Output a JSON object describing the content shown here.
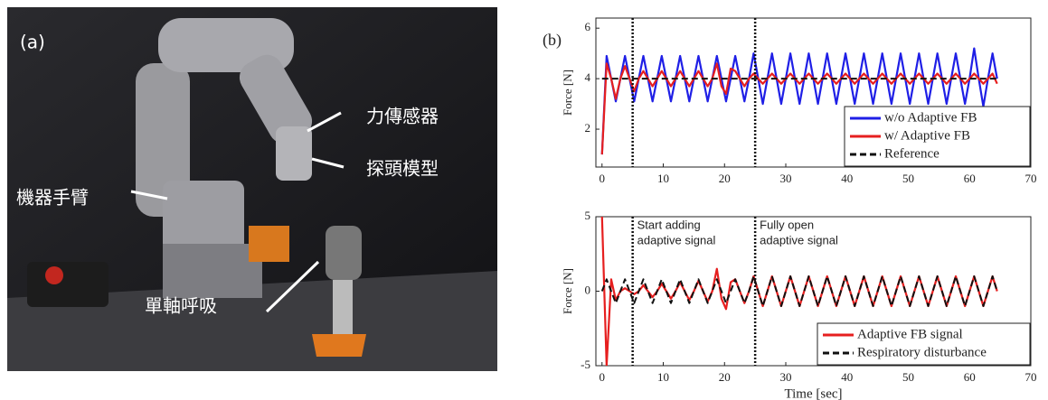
{
  "photo": {
    "label": "(a)",
    "annotations": [
      "力傳感器",
      "探頭模型",
      "機器手臂",
      "單軸呼吸"
    ]
  },
  "panel_label": "(b)",
  "chart_data": [
    {
      "type": "line",
      "ylabel": "Force [N]",
      "x": [
        0,
        0.75,
        1.5,
        2.25,
        3,
        3.75,
        4.5,
        5.25,
        6,
        6.75,
        7.5,
        8.25,
        9,
        9.75,
        10.5,
        11.25,
        12,
        12.75,
        13.5,
        14.25,
        15,
        15.75,
        16.5,
        17.25,
        18,
        18.75,
        19.5,
        20.25,
        21,
        21.75,
        22.5,
        23.25,
        24,
        24.75,
        25.5,
        26.25,
        27,
        27.75,
        28.5,
        29.25,
        30,
        30.75,
        31.5,
        32.25,
        33,
        33.75,
        34.5,
        35.25,
        36,
        36.75,
        37.5,
        38.25,
        39,
        39.75,
        40.5,
        41.25,
        42,
        42.75,
        43.5,
        44.25,
        45,
        45.75,
        46.5,
        47.25,
        48,
        48.75,
        49.5,
        50.25,
        51,
        51.75,
        52.5,
        53.25,
        54,
        54.75,
        55.5,
        56.25,
        57,
        57.75,
        58.5,
        59.25,
        60,
        60.75,
        61.5,
        62.25,
        63,
        63.75,
        64.5
      ],
      "series": [
        {
          "name": "w/o Adaptive FB",
          "color": "#1f1fe6",
          "linestyle": "solid",
          "values": [
            1,
            4.9,
            4,
            3.1,
            4,
            4.9,
            4,
            3.1,
            4,
            4.9,
            4,
            3.1,
            4,
            4.9,
            4,
            3.1,
            4,
            4.9,
            4,
            3.1,
            4,
            4.9,
            4,
            3.1,
            4,
            4.9,
            4,
            3.1,
            4,
            4.9,
            4,
            3.1,
            4,
            5,
            4,
            3,
            4,
            5,
            4,
            3,
            4,
            5,
            4,
            3,
            4,
            5,
            4,
            3,
            4,
            5,
            4,
            3,
            4,
            5,
            4,
            3,
            4,
            5,
            4,
            3,
            4,
            5,
            4,
            3,
            4,
            5,
            4,
            3,
            4,
            5,
            4,
            3,
            4,
            5,
            4,
            3,
            4,
            5,
            4,
            3,
            4,
            5.2,
            4,
            2.9,
            4,
            5,
            4
          ]
        },
        {
          "name": "w/ Adaptive FB",
          "color": "#e61f1f",
          "linestyle": "solid",
          "values": [
            1,
            4.6,
            4,
            3.2,
            4,
            4.5,
            4,
            3.5,
            4,
            4.3,
            4,
            3.7,
            4,
            4.3,
            4,
            3.7,
            4,
            4.3,
            4,
            3.7,
            4,
            4.3,
            4,
            3.7,
            4,
            4.6,
            3.7,
            3.4,
            4.4,
            4.3,
            4,
            3.7,
            4,
            4.2,
            4,
            3.8,
            4,
            4.2,
            4,
            3.8,
            4,
            4.2,
            4,
            3.8,
            4,
            4.2,
            4,
            3.8,
            4,
            4.2,
            4,
            3.8,
            4,
            4.2,
            4,
            3.8,
            4,
            4.2,
            4,
            3.8,
            4,
            4.2,
            4,
            3.8,
            4,
            4.2,
            4,
            3.8,
            4,
            4.2,
            4,
            3.8,
            4,
            4.2,
            4,
            3.8,
            4,
            4.2,
            4,
            3.8,
            4,
            4.2,
            4,
            3.8,
            4,
            4.2,
            3.8
          ]
        },
        {
          "name": "Reference",
          "color": "#111111",
          "linestyle": "dashed",
          "values": [
            4,
            4,
            4,
            4,
            4,
            4,
            4,
            4,
            4,
            4,
            4,
            4,
            4,
            4,
            4,
            4,
            4,
            4,
            4,
            4,
            4,
            4,
            4,
            4,
            4,
            4,
            4,
            4,
            4,
            4,
            4,
            4,
            4,
            4,
            4,
            4,
            4,
            4,
            4,
            4,
            4,
            4,
            4,
            4,
            4,
            4,
            4,
            4,
            4,
            4,
            4,
            4,
            4,
            4,
            4,
            4,
            4,
            4,
            4,
            4,
            4,
            4,
            4,
            4,
            4,
            4,
            4,
            4,
            4,
            4,
            4,
            4,
            4,
            4,
            4,
            4,
            4,
            4,
            4,
            4,
            4,
            4,
            4,
            4,
            4,
            4,
            4
          ]
        }
      ],
      "xlim": [
        -1,
        70
      ],
      "xticks": [
        0,
        10,
        20,
        30,
        40,
        50,
        60,
        70
      ],
      "ylim": [
        0.5,
        6.4
      ],
      "yticks": [
        2,
        4,
        6
      ],
      "vlines": [
        5,
        25
      ],
      "legend": "lower right"
    },
    {
      "type": "line",
      "ylabel": "Force [N]",
      "xlabel": "Time [sec]",
      "x": [
        0,
        0.75,
        1.5,
        2.25,
        3,
        3.75,
        4.5,
        5.25,
        6,
        6.75,
        7.5,
        8.25,
        9,
        9.75,
        10.5,
        11.25,
        12,
        12.75,
        13.5,
        14.25,
        15,
        15.75,
        16.5,
        17.25,
        18,
        18.75,
        19.5,
        20.25,
        21,
        21.75,
        22.5,
        23.25,
        24,
        24.75,
        25.5,
        26.25,
        27,
        27.75,
        28.5,
        29.25,
        30,
        30.75,
        31.5,
        32.25,
        33,
        33.75,
        34.5,
        35.25,
        36,
        36.75,
        37.5,
        38.25,
        39,
        39.75,
        40.5,
        41.25,
        42,
        42.75,
        43.5,
        44.25,
        45,
        45.75,
        46.5,
        47.25,
        48,
        48.75,
        49.5,
        50.25,
        51,
        51.75,
        52.5,
        53.25,
        54,
        54.75,
        55.5,
        56.25,
        57,
        57.75,
        58.5,
        59.25,
        60,
        60.75,
        61.5,
        62.25,
        63,
        63.75,
        64.5
      ],
      "series": [
        {
          "name": "Adaptive FB signal",
          "color": "#e61f1f",
          "linestyle": "solid",
          "values": [
            5,
            -5,
            0.8,
            -0.6,
            0,
            0.2,
            0,
            -0.2,
            0,
            0.4,
            0,
            -0.4,
            0,
            0.5,
            0,
            -0.5,
            0,
            0.6,
            0,
            -0.6,
            0,
            0.7,
            0,
            -0.7,
            0,
            1.5,
            -0.5,
            -1.2,
            0.6,
            0.8,
            0,
            -0.8,
            0,
            1,
            0,
            -1,
            0,
            1,
            0,
            -1,
            0,
            1,
            0,
            -1,
            0,
            1,
            0,
            -1,
            0,
            1,
            0,
            -1,
            0,
            1,
            0,
            -1,
            0,
            1,
            0,
            -1,
            0,
            1,
            0,
            -1,
            0,
            1,
            0,
            -1,
            0,
            1,
            0,
            -1,
            0,
            1,
            0,
            -1,
            0,
            1,
            0,
            -1,
            0,
            1,
            0,
            -1,
            0,
            1,
            0
          ]
        },
        {
          "name": "Respiratory disturbance",
          "color": "#111111",
          "linestyle": "dashed",
          "values": [
            0,
            0.8,
            0,
            -0.8,
            0,
            0.8,
            0,
            -0.8,
            0,
            0.8,
            0,
            -0.8,
            0,
            0.8,
            0,
            -0.8,
            0,
            0.8,
            0,
            -0.8,
            0,
            0.8,
            0,
            -0.8,
            0,
            0.8,
            0,
            -0.8,
            0,
            0.8,
            0,
            -0.8,
            0,
            1,
            0,
            -1,
            0,
            1,
            0,
            -1,
            0,
            1,
            0,
            -1,
            0,
            1,
            0,
            -1,
            0,
            1,
            0,
            -1,
            0,
            1,
            0,
            -1,
            0,
            1,
            0,
            -1,
            0,
            1,
            0,
            -1,
            0,
            1,
            0,
            -1,
            0,
            1,
            0,
            -1,
            0,
            1,
            0,
            -1,
            0,
            1,
            0,
            -1,
            0,
            1,
            0,
            -1,
            0,
            1,
            0
          ]
        }
      ],
      "xlim": [
        -1,
        70
      ],
      "xticks": [
        0,
        10,
        20,
        30,
        40,
        50,
        60,
        70
      ],
      "ylim": [
        -5,
        5
      ],
      "yticks": [
        -5,
        0,
        5
      ],
      "vlines": [
        5,
        25
      ],
      "annotations": [
        [
          "Start adding",
          "adaptive signal"
        ],
        [
          "Fully open",
          "adaptive signal"
        ]
      ],
      "legend": "lower right"
    }
  ]
}
